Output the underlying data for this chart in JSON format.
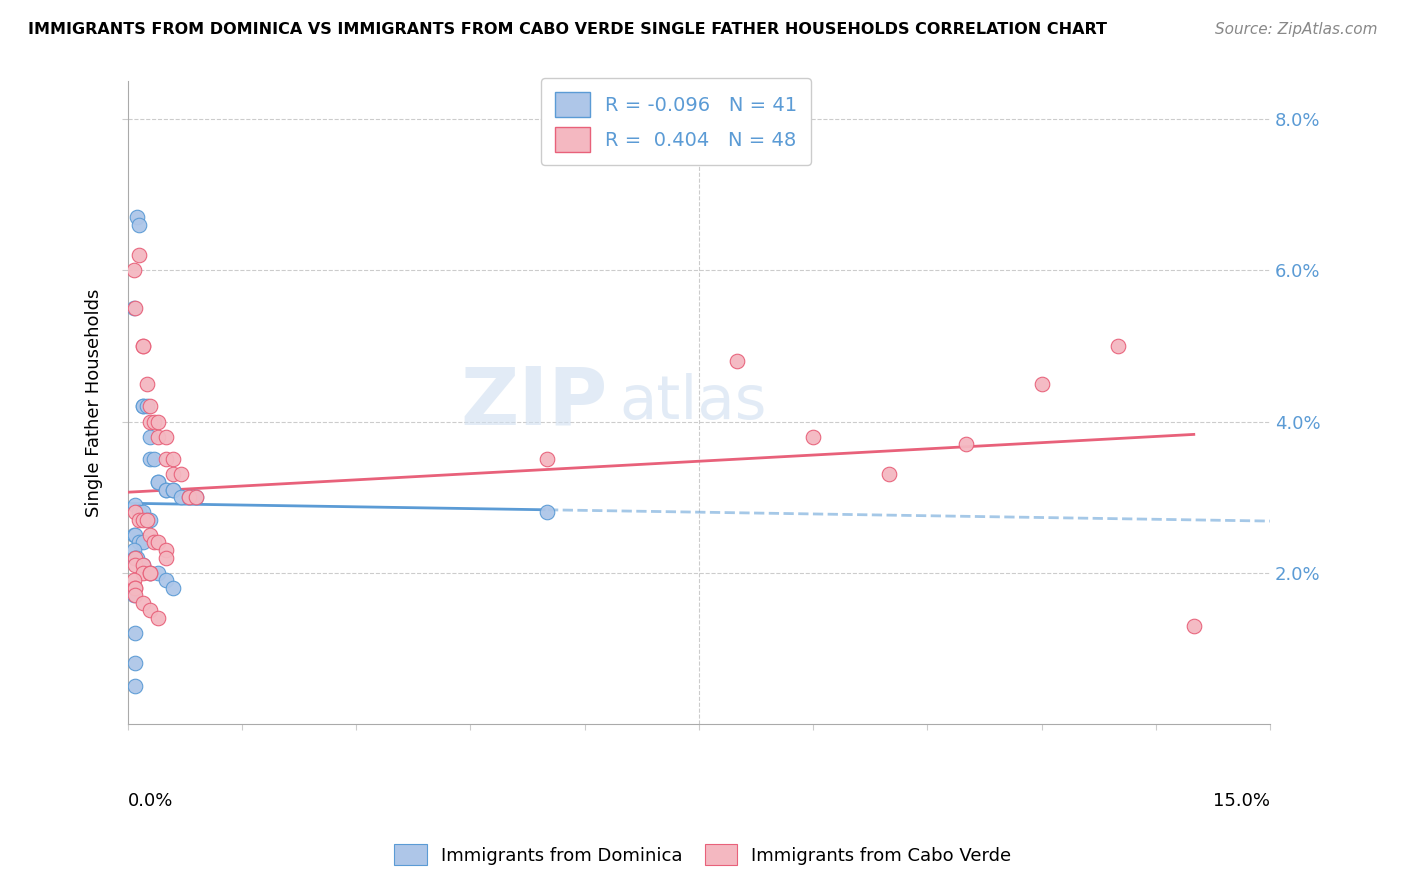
{
  "title": "IMMIGRANTS FROM DOMINICA VS IMMIGRANTS FROM CABO VERDE SINGLE FATHER HOUSEHOLDS CORRELATION CHART",
  "source": "Source: ZipAtlas.com",
  "ylabel": "Single Father Households",
  "legend_label1": "Immigrants from Dominica",
  "legend_label2": "Immigrants from Cabo Verde",
  "R1": "-0.096",
  "N1": "41",
  "R2": "0.404",
  "N2": "48",
  "color1": "#aec6e8",
  "color2": "#f4b8c1",
  "line1_color": "#5b9bd5",
  "line2_color": "#e8617a",
  "watermark_zip": "ZIP",
  "watermark_atlas": "atlas",
  "dominica_x": [
    0.0008,
    0.0012,
    0.0015,
    0.002,
    0.002,
    0.0025,
    0.003,
    0.003,
    0.0035,
    0.004,
    0.004,
    0.005,
    0.005,
    0.006,
    0.006,
    0.007,
    0.008,
    0.009,
    0.001,
    0.0015,
    0.002,
    0.0025,
    0.003,
    0.0008,
    0.001,
    0.0015,
    0.002,
    0.0008,
    0.001,
    0.001,
    0.0012,
    0.002,
    0.003,
    0.004,
    0.005,
    0.006,
    0.0008,
    0.001,
    0.001,
    0.055,
    0.001
  ],
  "dominica_y": [
    0.055,
    0.067,
    0.066,
    0.042,
    0.042,
    0.042,
    0.038,
    0.035,
    0.035,
    0.032,
    0.032,
    0.031,
    0.031,
    0.031,
    0.031,
    0.03,
    0.03,
    0.03,
    0.029,
    0.028,
    0.028,
    0.027,
    0.027,
    0.025,
    0.025,
    0.024,
    0.024,
    0.023,
    0.022,
    0.022,
    0.022,
    0.021,
    0.02,
    0.02,
    0.019,
    0.018,
    0.017,
    0.012,
    0.008,
    0.028,
    0.005
  ],
  "caboverde_x": [
    0.0008,
    0.001,
    0.0015,
    0.002,
    0.002,
    0.0025,
    0.003,
    0.003,
    0.0035,
    0.004,
    0.004,
    0.005,
    0.005,
    0.006,
    0.006,
    0.007,
    0.008,
    0.009,
    0.001,
    0.0015,
    0.002,
    0.0025,
    0.003,
    0.0035,
    0.004,
    0.005,
    0.005,
    0.001,
    0.001,
    0.002,
    0.002,
    0.003,
    0.003,
    0.0008,
    0.001,
    0.001,
    0.001,
    0.055,
    0.08,
    0.09,
    0.1,
    0.11,
    0.12,
    0.13,
    0.14,
    0.002,
    0.003,
    0.004
  ],
  "caboverde_y": [
    0.06,
    0.055,
    0.062,
    0.05,
    0.05,
    0.045,
    0.042,
    0.04,
    0.04,
    0.04,
    0.038,
    0.038,
    0.035,
    0.035,
    0.033,
    0.033,
    0.03,
    0.03,
    0.028,
    0.027,
    0.027,
    0.027,
    0.025,
    0.024,
    0.024,
    0.023,
    0.022,
    0.022,
    0.021,
    0.021,
    0.02,
    0.02,
    0.02,
    0.019,
    0.018,
    0.018,
    0.017,
    0.035,
    0.048,
    0.038,
    0.033,
    0.037,
    0.045,
    0.05,
    0.013,
    0.016,
    0.015,
    0.014
  ],
  "xlim": [
    0,
    0.15
  ],
  "ylim": [
    0,
    0.085
  ],
  "yticks": [
    0.02,
    0.04,
    0.06,
    0.08
  ],
  "ytick_labels": [
    "2.0%",
    "4.0%",
    "6.0%",
    "8.0%"
  ],
  "xtick_left_label": "0.0%",
  "xtick_right_label": "15.0%",
  "dashed_extend_from": 0.06
}
